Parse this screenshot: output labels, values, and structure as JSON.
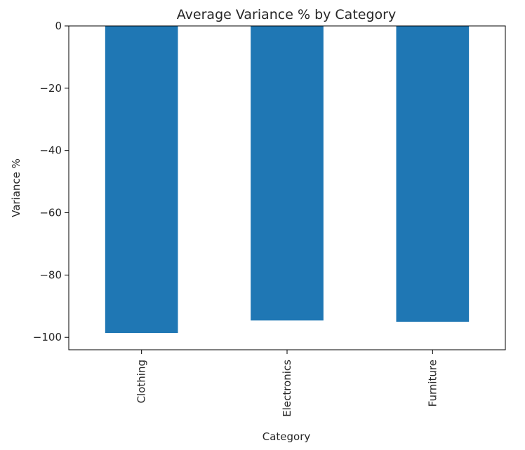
{
  "chart_data": {
    "type": "bar",
    "title": "Average Variance % by Category",
    "xlabel": "Category",
    "ylabel": "Variance %",
    "categories": [
      "Clothing",
      "Electronics",
      "Furniture"
    ],
    "values": [
      -98.6,
      -94.6,
      -95.0
    ],
    "ylim": [
      -104,
      0
    ],
    "yticks": [
      0,
      -20,
      -40,
      -60,
      -80,
      -100
    ],
    "ytick_labels": [
      "0",
      "−20",
      "−40",
      "−60",
      "−80",
      "−100"
    ],
    "grid": false,
    "legend": "none",
    "colors": {
      "bar": "#1f77b4",
      "axis": "#000000",
      "text": "#262626"
    }
  }
}
